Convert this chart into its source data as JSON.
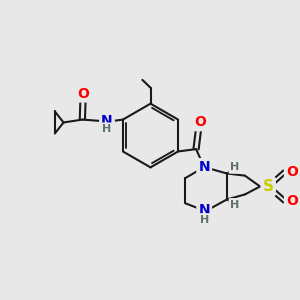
{
  "bg_color": "#e8e8e8",
  "bond_color": "#1a1a1a",
  "bond_width": 1.5,
  "atom_colors": {
    "O": "#ff0000",
    "N": "#0000cc",
    "S": "#cccc00",
    "H": "#607070",
    "C": "#1a1a1a"
  },
  "figsize": [
    3.0,
    3.0
  ],
  "dpi": 100,
  "xlim": [
    0,
    10
  ],
  "ylim": [
    0,
    10
  ]
}
